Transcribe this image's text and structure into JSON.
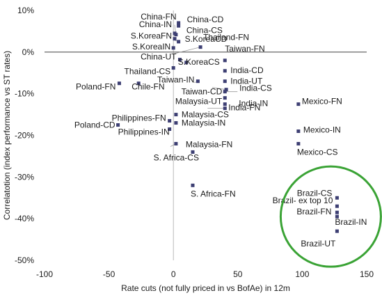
{
  "chart_data": {
    "type": "scatter",
    "xlabel": "Rate cuts (not fully priced in vs BofAe) in 12m",
    "ylabel": "Correlatotion (index performance vs ST rates)",
    "xlim": [
      -100,
      150
    ],
    "ylim": [
      -50,
      10
    ],
    "xticks": [
      -100,
      -50,
      0,
      50,
      100,
      150
    ],
    "yticks": [
      10,
      0,
      -10,
      -20,
      -30,
      -40,
      -50
    ],
    "xtick_labels": [
      "-100",
      "-50",
      "0",
      "50",
      "100",
      "150"
    ],
    "ytick_labels": [
      "10%",
      "0%",
      "-10%",
      "-20%",
      "-30%",
      "-40%",
      "-50%"
    ],
    "zero_line": true,
    "grid": false,
    "marker_color": "#3d3f73",
    "highlight_circle_color": "#3aa335",
    "points": [
      {
        "label": "China-FN",
        "x": 4,
        "y": 7
      },
      {
        "label": "China-CD",
        "x": 4,
        "y": 6.3
      },
      {
        "label": "China-IN",
        "x": 1,
        "y": 4.5
      },
      {
        "label": "China-CS",
        "x": 2,
        "y": 4.2
      },
      {
        "label": "S.KoreaFN",
        "x": 1,
        "y": 3.2
      },
      {
        "label": "S.KoreaCD",
        "x": 4,
        "y": 2.5
      },
      {
        "label": "S.KoreaIN",
        "x": 0,
        "y": 1
      },
      {
        "label": "Thailand-FN",
        "x": 21,
        "y": 1.2
      },
      {
        "label": "China-UT",
        "x": 5,
        "y": -1.8
      },
      {
        "label": "S.KoreaCS",
        "x": 10,
        "y": -2.5
      },
      {
        "label": "Thailand-CS",
        "x": 0,
        "y": -3.8
      },
      {
        "label": "Taiwan-FN",
        "x": 40,
        "y": -2
      },
      {
        "label": "India-CD",
        "x": 40,
        "y": -4.5
      },
      {
        "label": "Taiwan-IN",
        "x": 19,
        "y": -7
      },
      {
        "label": "India-UT",
        "x": 40,
        "y": -7
      },
      {
        "label": "India-CS",
        "x": 41,
        "y": -9
      },
      {
        "label": "Poland-FN",
        "x": -42,
        "y": -7.5
      },
      {
        "label": "Chile-FN",
        "x": -27,
        "y": -7.5
      },
      {
        "label": "Taiwan-CD",
        "x": 40,
        "y": -9.5
      },
      {
        "label": "Malaysia-UT",
        "x": 40,
        "y": -12.5
      },
      {
        "label": "India-IN",
        "x": 40,
        "y": -13.5
      },
      {
        "label": "India-FN",
        "x": 40,
        "y": -11
      },
      {
        "label": "Malaysia-CS",
        "x": 2,
        "y": -15
      },
      {
        "label": "Philippines-FN",
        "x": -3,
        "y": -16.5
      },
      {
        "label": "Malaysia-IN",
        "x": 2,
        "y": -17
      },
      {
        "label": "Poland-CD",
        "x": -43,
        "y": -17.5
      },
      {
        "label": "Philippines-IN",
        "x": -3,
        "y": -18.5
      },
      {
        "label": "Malaysia-FN",
        "x": 2,
        "y": -22
      },
      {
        "label": "S. Africa-CS",
        "x": 15,
        "y": -24
      },
      {
        "label": "S. Africa-FN",
        "x": 15,
        "y": -32
      },
      {
        "label": "Mexico-FN",
        "x": 97,
        "y": -12.5
      },
      {
        "label": "Mexico-IN",
        "x": 97,
        "y": -19
      },
      {
        "label": "Mexico-CS",
        "x": 97,
        "y": -22
      },
      {
        "label": "Brazil-CS",
        "x": 127,
        "y": -35
      },
      {
        "label": "Brazil- ex top 10",
        "x": 127,
        "y": -37
      },
      {
        "label": "Brazil-FN",
        "x": 127,
        "y": -38.5
      },
      {
        "label": "Brazil-IN",
        "x": 127,
        "y": -39.5
      },
      {
        "label": "Brazil-UT",
        "x": 127,
        "y": -43
      }
    ]
  }
}
